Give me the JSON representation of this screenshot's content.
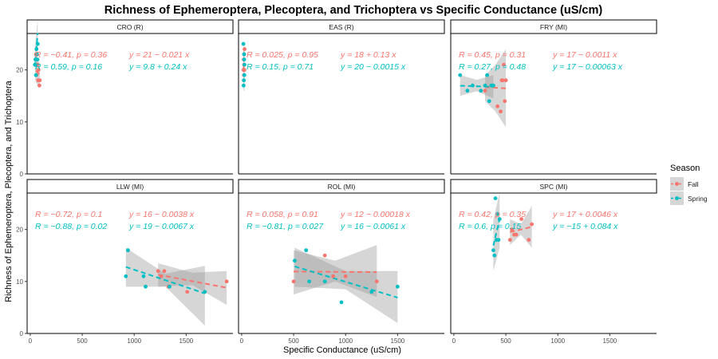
{
  "chart_data": {
    "type": "scatter",
    "title": "Richness of Ephemeroptera, Plecoptera, and Trichoptera vs Specific Conductance (uS/cm)",
    "xlabel": "Specific Conductance (uS/cm)",
    "ylabel": "Richness of Ephemeroptera, Plecoptera, and Trichoptera",
    "xlim": [
      -30,
      1950
    ],
    "ylim": [
      0,
      27
    ],
    "x_ticks": [
      0,
      500,
      1000,
      1500
    ],
    "x_tick_labels": [
      "0",
      "500",
      "1000",
      "1500"
    ],
    "y_ticks": [
      0,
      10,
      20
    ],
    "y_tick_labels": [
      "0",
      "10",
      "20"
    ],
    "grid": false,
    "legend_position": "right",
    "legend": {
      "title": "Season",
      "entries": [
        {
          "label": "Fall",
          "color": "#F8766D"
        },
        {
          "label": "Spring",
          "color": "#00BFC4"
        }
      ]
    },
    "panels": [
      {
        "label": "CRO (R)",
        "annotations": {
          "Fall": {
            "stats": "R = −0.41, p = 0.36",
            "eq": "y = 21 − 0.021 x"
          },
          "Spring": {
            "stats": "R = 0.59, p = 0.16",
            "eq": "y = 9.8 + 0.24 x"
          }
        },
        "series": [
          {
            "name": "Fall",
            "x": [
              55,
              60,
              70,
              75,
              80,
              88,
              92
            ],
            "y": [
              23,
              19,
              21,
              18,
              20,
              17,
              18
            ],
            "fit": {
              "x": [
                55,
                92
              ],
              "y": [
                19.85,
                19.07
              ]
            },
            "band": {
              "x": [
                55,
                92
              ],
              "lo": [
                17.5,
                16.8
              ],
              "hi": [
                22.2,
                21.3
              ]
            }
          },
          {
            "name": "Spring",
            "x": [
              45,
              50,
              55,
              60,
              65,
              70,
              72
            ],
            "y": [
              21,
              22,
              19,
              24,
              23,
              22,
              25
            ],
            "fit": {
              "x": [
                45,
                72
              ],
              "y": [
                20.6,
                27.1
              ]
            },
            "band": {
              "x": [
                45,
                72
              ],
              "lo": [
                17.0,
                22.0
              ],
              "hi": [
                24.0,
                30.0
              ]
            }
          }
        ]
      },
      {
        "label": "EAS (R)",
        "annotations": {
          "Fall": {
            "stats": "R = 0.025, p = 0.95",
            "eq": "y = 18 + 0.13 x"
          },
          "Spring": {
            "stats": "R = 0.15, p = 0.71",
            "eq": "y = 20 − 0.0015 x"
          }
        },
        "series": [
          {
            "name": "Fall",
            "x": [
              18,
              20,
              22,
              24,
              25,
              26,
              28
            ],
            "y": [
              20,
              22,
              19,
              21,
              23,
              20,
              24
            ],
            "fit": {
              "x": [
                18,
                28
              ],
              "y": [
                20.3,
                21.6
              ]
            },
            "band": {
              "x": [
                18,
                28
              ],
              "lo": [
                17.0,
                18.0
              ],
              "hi": [
                24.0,
                25.0
              ]
            }
          },
          {
            "name": "Spring",
            "x": [
              17,
              19,
              21,
              23,
              24,
              26,
              27
            ],
            "y": [
              25,
              17,
              18,
              23,
              22,
              19,
              21
            ],
            "fit": {
              "x": [
                17,
                27
              ],
              "y": [
                19.97,
                19.96
              ]
            },
            "band": {
              "x": [
                17,
                27
              ],
              "lo": [
                16.0,
                16.0
              ],
              "hi": [
                24.0,
                24.0
              ]
            }
          }
        ]
      },
      {
        "label": "FRY (MI)",
        "annotations": {
          "Fall": {
            "stats": "R = 0.45, p = 0.31",
            "eq": "y = 17 − 0.0011 x"
          },
          "Spring": {
            "stats": "R = 0.27, p = 0.48",
            "eq": "y = 17 − 0.00063 x"
          }
        },
        "series": [
          {
            "name": "Fall",
            "x": [
              300,
              420,
              450,
              460,
              470,
              480,
              490,
              500
            ],
            "y": [
              16,
              13,
              12,
              18,
              18,
              21,
              14,
              18
            ],
            "fit": {
              "x": [
                300,
                500
              ],
              "y": [
                16.7,
                16.45
              ]
            },
            "band": {
              "x": [
                300,
                400,
                500
              ],
              "lo": [
                14.0,
                12.0,
                9.0
              ],
              "hi": [
                19.0,
                21.0,
                24.0
              ]
            }
          },
          {
            "name": "Spring",
            "x": [
              60,
              130,
              180,
              260,
              300,
              320,
              340,
              360,
              380
            ],
            "y": [
              19,
              16,
              17,
              16,
              17,
              19,
              14,
              17,
              17
            ],
            "fit": {
              "x": [
                60,
                380
              ],
              "y": [
                16.96,
                16.76
              ]
            },
            "band": {
              "x": [
                60,
                220,
                380
              ],
              "lo": [
                15.0,
                15.9,
                14.5
              ],
              "hi": [
                19.0,
                18.1,
                19.0
              ]
            }
          }
        ]
      },
      {
        "label": "LLW (MI)",
        "annotations": {
          "Fall": {
            "stats": "R = −0.72, p = 0.1",
            "eq": "y = 16 − 0.0038 x"
          },
          "Spring": {
            "stats": "R = −0.88, p = 0.02",
            "eq": "y = 19 − 0.0067 x"
          }
        },
        "series": [
          {
            "name": "Fall",
            "x": [
              1230,
              1260,
              1290,
              1330,
              1510,
              1890
            ],
            "y": [
              12,
              11,
              12,
              9,
              8,
              10
            ],
            "fit": {
              "x": [
                1230,
                1890
              ],
              "y": [
                11.3,
                8.8
              ]
            },
            "band": {
              "x": [
                1230,
                1560,
                1890
              ],
              "lo": [
                9.0,
                9.3,
                5.5
              ],
              "hi": [
                13.5,
                11.7,
                12.0
              ]
            }
          },
          {
            "name": "Spring",
            "x": [
              920,
              940,
              1090,
              1110,
              1340,
              1680
            ],
            "y": [
              11,
              16,
              11,
              9,
              9,
              8
            ],
            "fit": {
              "x": [
                920,
                1680
              ],
              "y": [
                12.8,
                7.7
              ]
            },
            "band": {
              "x": [
                920,
                1300,
                1680
              ],
              "lo": [
                9.0,
                9.0,
                1.5
              ],
              "hi": [
                16.5,
                11.5,
                13.0
              ]
            }
          }
        ]
      },
      {
        "label": "ROL (MI)",
        "annotations": {
          "Fall": {
            "stats": "R = 0.058, p = 0.91",
            "eq": "y = 12 − 0.00018 x"
          },
          "Spring": {
            "stats": "R = −0.81, p = 0.027",
            "eq": "y = 16 − 0.0061 x"
          }
        },
        "series": [
          {
            "name": "Fall",
            "x": [
              500,
              800,
              880,
              1000,
              1300
            ],
            "y": [
              10,
              15,
              11,
              11,
              10
            ],
            "fit": {
              "x": [
                500,
                1300
              ],
              "y": [
                11.9,
                11.8
              ]
            },
            "band": {
              "x": [
                500,
                900,
                1300
              ],
              "lo": [
                7.5,
                10.0,
                7.0
              ],
              "hi": [
                16.0,
                14.0,
                17.0
              ]
            }
          },
          {
            "name": "Spring",
            "x": [
              510,
              620,
              650,
              800,
              960,
              1250,
              1500
            ],
            "y": [
              14,
              16,
              10,
              10,
              6,
              8,
              9
            ],
            "fit": {
              "x": [
                510,
                1500
              ],
              "y": [
                12.9,
                6.9
              ]
            },
            "band": {
              "x": [
                510,
                1000,
                1500
              ],
              "lo": [
                9.0,
                8.5,
                2.0
              ],
              "hi": [
                16.5,
                12.0,
                12.0
              ]
            }
          }
        ]
      },
      {
        "label": "SPC (MI)",
        "annotations": {
          "Fall": {
            "stats": "R = 0.42, p = 0.35",
            "eq": "y = 17 + 0.0046 x"
          },
          "Spring": {
            "stats": "R = 0.6, p = 0.15",
            "eq": "y = −15 + 0.084 x"
          }
        },
        "series": [
          {
            "name": "Fall",
            "x": [
              540,
              560,
              580,
              600,
              650,
              720,
              750
            ],
            "y": [
              18,
              20,
              19,
              19,
              22,
              18,
              21
            ],
            "fit": {
              "x": [
                540,
                750
              ],
              "y": [
                19.5,
                20.5
              ]
            },
            "band": {
              "x": [
                540,
                645,
                750
              ],
              "lo": [
                17.0,
                19.0,
                16.5
              ],
              "hi": [
                22.0,
                21.0,
                24.5
              ]
            }
          },
          {
            "name": "Spring",
            "x": [
              380,
              390,
              400,
              410,
              420,
              430,
              440
            ],
            "y": [
              16,
              15,
              26,
              18,
              23,
              18,
              22
            ],
            "fit": {
              "x": [
                380,
                440
              ],
              "y": [
                16.9,
                22.0
              ]
            },
            "band": {
              "x": [
                380,
                440
              ],
              "lo": [
                12.0,
                16.5
              ],
              "hi": [
                22.0,
                27.0
              ]
            }
          }
        ]
      }
    ]
  }
}
